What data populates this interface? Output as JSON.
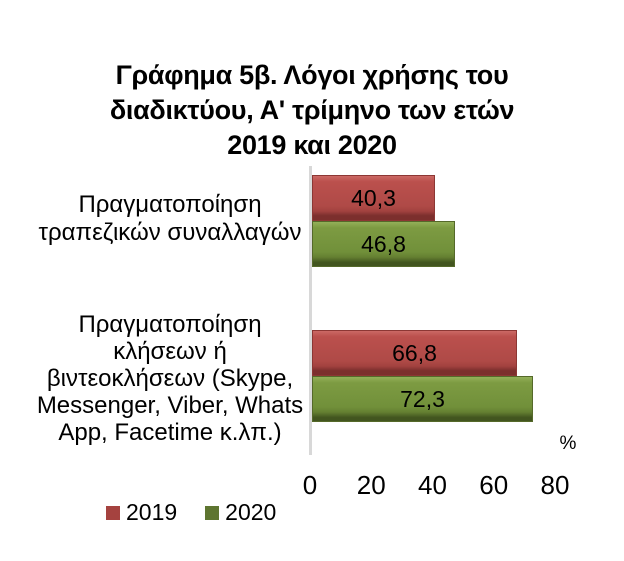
{
  "chart_data": {
    "type": "bar",
    "orientation": "horizontal",
    "title": "Γράφημα 5β. Λόγοι χρήσης του διαδικτύου, Α' τρίμηνο των ετών 2019 και 2020",
    "title_lines": [
      "Γράφημα 5β. Λόγοι χρήσης του",
      "διαδικτύου, Α' τρίμηνο των ετών",
      "2019 και 2020"
    ],
    "categories": [
      "Πραγματοποίηση τραπεζικών συναλλαγών",
      "Πραγματοποίηση κλήσεων ή βιντεοκλήσεων (Skype, Messenger, Viber, Whats App, Facetime κ.λπ.)"
    ],
    "category_label_lines": [
      [
        "Πραγματοποίηση",
        "τραπεζικών συναλλαγών"
      ],
      [
        "Πραγματοποίηση",
        "κλήσεων ή",
        "βιντεοκλήσεων (Skype,",
        "Messenger, Viber, Whats",
        "App, Facetime κ.λπ.)"
      ]
    ],
    "series": [
      {
        "name": "2019",
        "color": "#AF4A47",
        "values": [
          40.3,
          66.8
        ],
        "labels": [
          "40,3",
          "66,8"
        ]
      },
      {
        "name": "2020",
        "color": "#71903A",
        "values": [
          46.8,
          72.3
        ],
        "labels": [
          "46,8",
          "72,3"
        ]
      }
    ],
    "xlabel": "%",
    "xlim": [
      0,
      80
    ],
    "x_ticks": [
      "0",
      "20",
      "40",
      "60",
      "80"
    ],
    "x_tick_values": [
      0,
      20,
      40,
      60,
      80
    ],
    "grid": false,
    "legend_position": "bottom-left",
    "axis_line_color": "#D8D8D8",
    "background_color": "#FFFFFF",
    "text_color": "#000000"
  }
}
